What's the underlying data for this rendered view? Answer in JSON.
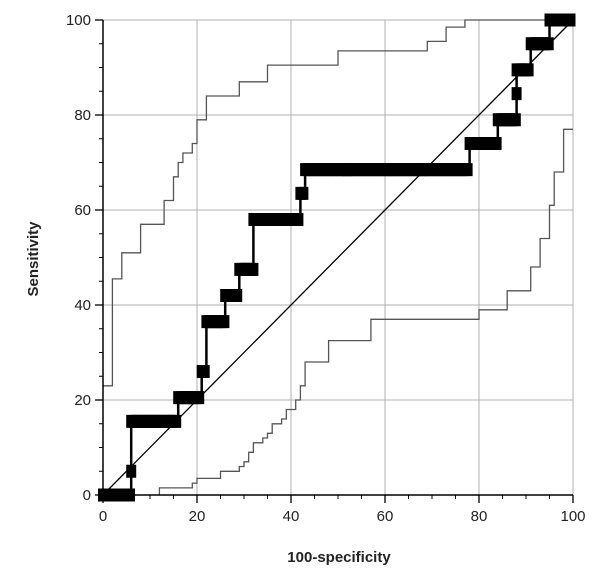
{
  "chart_data": {
    "type": "line",
    "title": "",
    "xlabel": "100-specificity",
    "ylabel": "Sensitivity",
    "xlim": [
      0,
      100
    ],
    "ylim": [
      0,
      100
    ],
    "x_ticks": [
      0,
      20,
      40,
      60,
      80,
      100
    ],
    "y_ticks": [
      0,
      20,
      40,
      60,
      80,
      100
    ],
    "grid": true,
    "legend": "none",
    "colors": {
      "roc": "#000000",
      "ci": "#555555",
      "reference": "#000000",
      "grid": "#b0b0b0"
    },
    "series": [
      {
        "role": "roc",
        "x": [
          0,
          6,
          6,
          6,
          6,
          16,
          16,
          21,
          21,
          22,
          22,
          26,
          26,
          29,
          29,
          32,
          32,
          32,
          32,
          42,
          42,
          43,
          43,
          52,
          52,
          62,
          68,
          78,
          78,
          84,
          84,
          88,
          88,
          88,
          88,
          91,
          91,
          95,
          95,
          100
        ],
        "y": [
          0,
          0,
          5,
          5,
          15.5,
          15.5,
          20.5,
          20.5,
          26,
          26,
          36.5,
          36.5,
          42,
          42,
          47.5,
          47.5,
          52.5,
          58,
          58,
          58,
          63.5,
          63.5,
          68.5,
          68.5,
          68.5,
          68.5,
          68.5,
          68.5,
          74,
          74,
          79,
          79,
          84.5,
          89.5,
          89.5,
          89.5,
          95,
          95,
          100,
          100
        ]
      },
      {
        "role": "ci_upper",
        "x": [
          0,
          2,
          2,
          4,
          4,
          8,
          8,
          13,
          13,
          15,
          15,
          16,
          16,
          17,
          17,
          19,
          19,
          20,
          20,
          22,
          22,
          24,
          24,
          29,
          29,
          35,
          35,
          40,
          40,
          42,
          42,
          50,
          50,
          69,
          69,
          73,
          73,
          77,
          77,
          81,
          81,
          84,
          84,
          90,
          90,
          100
        ],
        "y": [
          23,
          23,
          45.5,
          45.5,
          51,
          51,
          57,
          57,
          62,
          62,
          67,
          67,
          70,
          70,
          72,
          72,
          74,
          74,
          79,
          79,
          84,
          84,
          84,
          84,
          87,
          87,
          90.5,
          90.5,
          90.5,
          90.5,
          90.5,
          90.5,
          93.5,
          93.5,
          95.5,
          95.5,
          98.5,
          98.5,
          100,
          100,
          100,
          100,
          100,
          100,
          100,
          100
        ]
      },
      {
        "role": "ci_lower",
        "x": [
          12,
          12,
          19,
          19,
          20,
          20,
          25,
          25,
          29,
          29,
          30,
          30,
          31,
          31,
          32,
          32,
          34,
          34,
          35,
          35,
          36,
          36,
          38,
          38,
          39,
          39,
          41,
          41,
          42,
          42,
          43,
          43,
          45,
          45,
          48,
          48,
          53,
          53,
          57,
          57,
          61,
          61,
          65,
          65,
          69,
          69,
          75,
          75,
          80,
          80,
          86,
          86,
          87,
          87,
          91,
          91,
          93,
          93,
          95,
          95,
          96,
          96,
          98,
          98,
          100
        ],
        "y": [
          0,
          1.5,
          1.5,
          2.5,
          2.5,
          3.5,
          3.5,
          5,
          5,
          6,
          6,
          7,
          7,
          9,
          9,
          11,
          11,
          12,
          12,
          13,
          13,
          15,
          15,
          16,
          16,
          18,
          18,
          20,
          20,
          23,
          23,
          28,
          28,
          28,
          28,
          32.5,
          32.5,
          32.5,
          32.5,
          37,
          37,
          37,
          37,
          37,
          37,
          37,
          37,
          37,
          37,
          39,
          39,
          43,
          43,
          43,
          43,
          48,
          48,
          54,
          54,
          61,
          61,
          68,
          68,
          77,
          77
        ]
      },
      {
        "role": "reference",
        "x": [
          0,
          100
        ],
        "y": [
          0,
          100
        ]
      }
    ]
  }
}
